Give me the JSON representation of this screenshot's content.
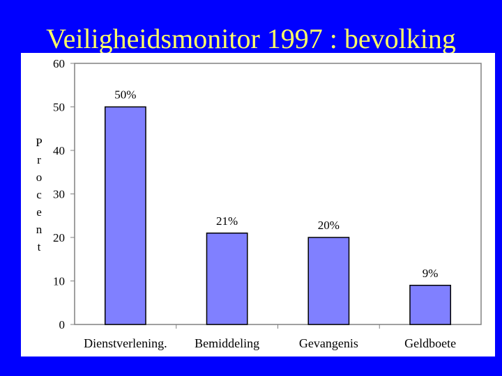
{
  "slide": {
    "title": "Veiligheidsmonitor 1997 : bevolking"
  },
  "colors": {
    "background": "#0000ff",
    "title": "#ffff66",
    "bar": "#8080ff"
  },
  "chart_data": {
    "type": "bar",
    "title": "",
    "xlabel": "",
    "ylabel": "Procent",
    "categories": [
      "Dienstverlening.",
      "Bemiddeling",
      "Gevangenis",
      "Geldboete"
    ],
    "values": [
      50,
      21,
      20,
      9
    ],
    "data_labels": [
      "50%",
      "21%",
      "20%",
      "9%"
    ],
    "ylim": [
      0,
      60
    ],
    "yticks": [
      0,
      10,
      20,
      30,
      40,
      50,
      60
    ],
    "grid": false,
    "legend": "none"
  }
}
